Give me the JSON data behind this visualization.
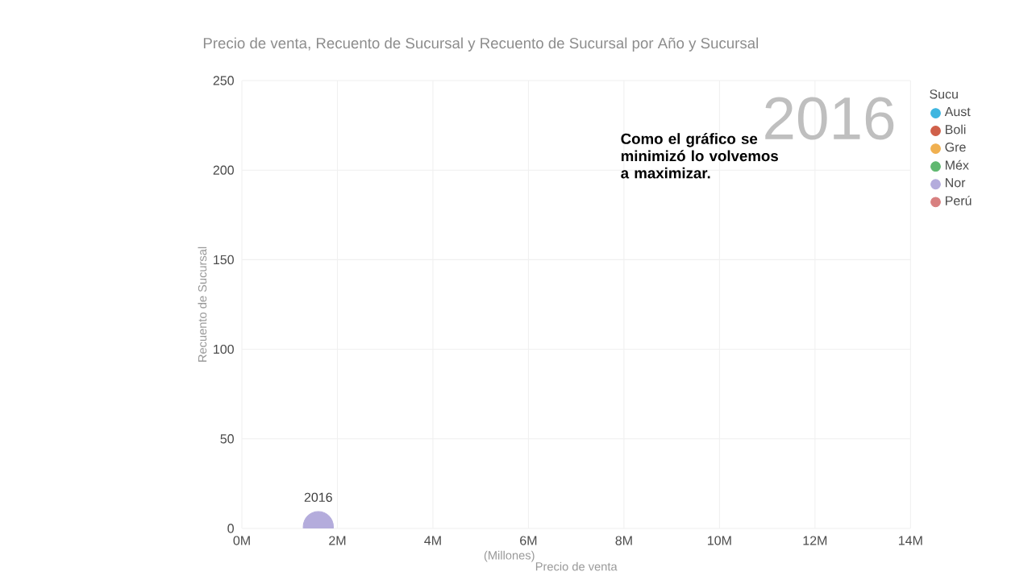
{
  "chart_data": {
    "type": "bubble",
    "title": "Precio de venta, Recuento de Sucursal y Recuento de Sucursal por Año y Sucursal",
    "xlabel": "Precio de venta",
    "ylabel": "Recuento de Sucursal",
    "legend_title": "Sucu",
    "annotations": [
      "(Millones)",
      "2016",
      "Como el gráfico se minimizó lo volvemos a maximizar.",
      {
        "text": "2016",
        "x": 1.6,
        "y": 1
      }
    ],
    "x": [
      1.6
    ],
    "series": [
      {
        "name": "Aust",
        "color": "#3fb6e0",
        "values": [
          null
        ],
        "sizes": [
          null
        ]
      },
      {
        "name": "Boli",
        "color": "#d0604a",
        "values": [
          null
        ],
        "sizes": [
          null
        ]
      },
      {
        "name": "Gre",
        "color": "#f0b050",
        "values": [
          null
        ],
        "sizes": [
          null
        ]
      },
      {
        "name": "Méx",
        "color": "#60b870",
        "values": [
          null
        ],
        "sizes": [
          null
        ]
      },
      {
        "name": "Nor",
        "color": "#b4acdc",
        "values": [
          1
        ],
        "sizes": [
          1
        ]
      },
      {
        "name": "Perú",
        "color": "#d88080",
        "values": [
          null
        ],
        "sizes": [
          null
        ]
      }
    ],
    "xlim": [
      0,
      14
    ],
    "xticks": [
      {
        "value": 0,
        "label": "0M"
      },
      {
        "value": 2,
        "label": "2M"
      },
      {
        "value": 4,
        "label": "4M"
      },
      {
        "value": 6,
        "label": "6M"
      },
      {
        "value": 8,
        "label": "8M"
      },
      {
        "value": 10,
        "label": "10M"
      },
      {
        "value": 12,
        "label": "12M"
      },
      {
        "value": 14,
        "label": "14M"
      }
    ],
    "ylim": [
      0,
      250
    ],
    "yticks": [
      0,
      50,
      100,
      150,
      200,
      250
    ],
    "grid": true,
    "legend": "right"
  }
}
